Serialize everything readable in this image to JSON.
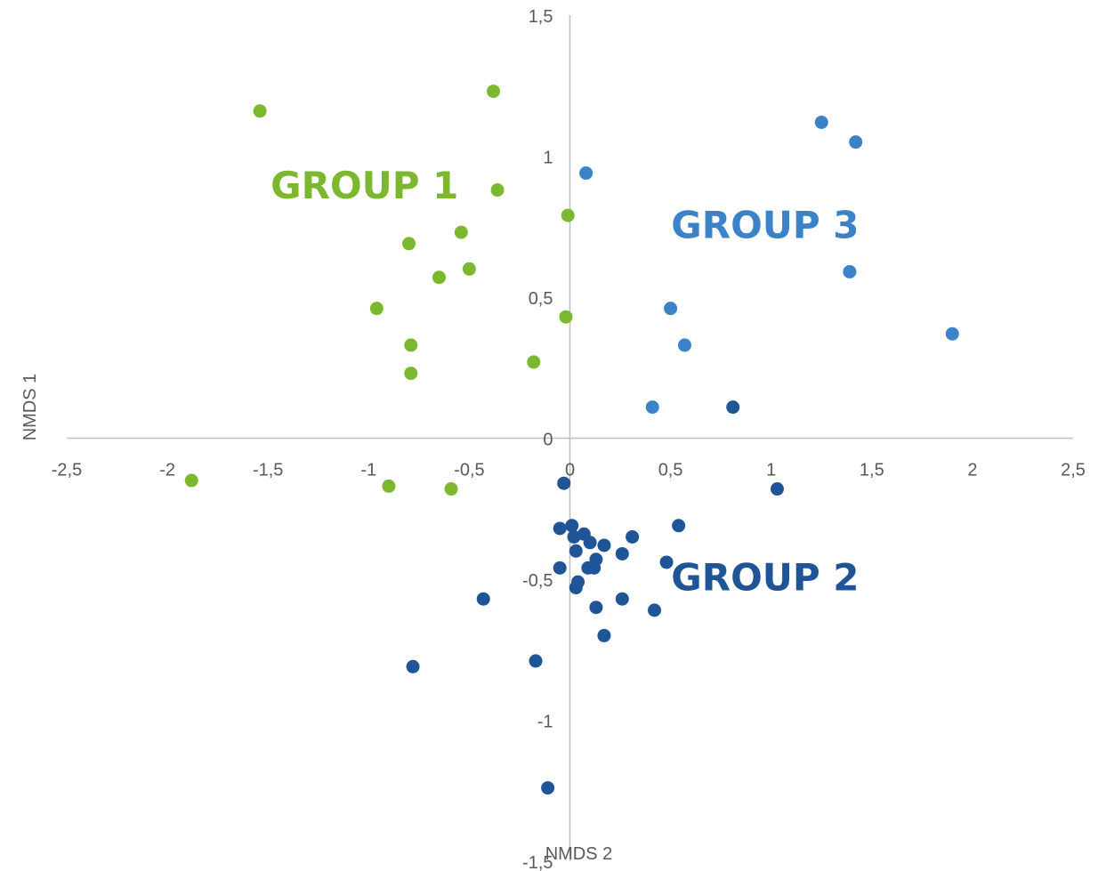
{
  "chart_data": {
    "type": "scatter",
    "title": "",
    "xlabel": "NMDS 2",
    "ylabel": "NMDS 1",
    "xlim": [
      -2.5,
      2.5
    ],
    "ylim": [
      -1.5,
      1.5
    ],
    "x_ticks": [
      "-2,5",
      "-2",
      "-1,5",
      "-1",
      "-0,5",
      "0",
      "0,5",
      "1",
      "1,5",
      "2",
      "2,5"
    ],
    "y_ticks": [
      "1,5",
      "1",
      "0,5",
      "0",
      "-0,5",
      "-1",
      "-1,5"
    ],
    "grid": false,
    "legend": "none",
    "annotations": [
      {
        "text": "GROUP 1",
        "color": "#7cb82f"
      },
      {
        "text": "GROUP 3",
        "color": "#3b82c8"
      },
      {
        "text": "GROUP 2",
        "color": "#1f5596"
      }
    ],
    "series": [
      {
        "color": "#7cb82f",
        "points": [
          [
            -1.54,
            1.16
          ],
          [
            -0.38,
            1.23
          ],
          [
            -0.36,
            0.88
          ],
          [
            -0.01,
            0.79
          ],
          [
            -0.54,
            0.73
          ],
          [
            -0.8,
            0.69
          ],
          [
            -0.65,
            0.57
          ],
          [
            -0.5,
            0.6
          ],
          [
            -0.96,
            0.46
          ],
          [
            -0.02,
            0.43
          ],
          [
            -0.79,
            0.33
          ],
          [
            -0.79,
            0.23
          ],
          [
            -0.18,
            0.27
          ],
          [
            -1.88,
            -0.15
          ],
          [
            -0.9,
            -0.17
          ],
          [
            -0.59,
            -0.18
          ]
        ]
      },
      {
        "color": "#3b82c8",
        "points": [
          [
            1.25,
            1.12
          ],
          [
            1.42,
            1.05
          ],
          [
            0.08,
            0.94
          ],
          [
            1.39,
            0.59
          ],
          [
            0.5,
            0.46
          ],
          [
            0.57,
            0.33
          ],
          [
            1.9,
            0.37
          ],
          [
            0.41,
            0.11
          ]
        ]
      },
      {
        "color": "#1f5596",
        "points": [
          [
            0.81,
            0.11
          ],
          [
            1.03,
            -0.18
          ],
          [
            -0.03,
            -0.16
          ],
          [
            0.01,
            -0.31
          ],
          [
            -0.05,
            -0.32
          ],
          [
            0.02,
            -0.35
          ],
          [
            0.07,
            -0.34
          ],
          [
            0.31,
            -0.35
          ],
          [
            0.54,
            -0.31
          ],
          [
            0.1,
            -0.37
          ],
          [
            0.17,
            -0.38
          ],
          [
            0.03,
            -0.4
          ],
          [
            0.13,
            -0.43
          ],
          [
            0.26,
            -0.41
          ],
          [
            0.48,
            -0.44
          ],
          [
            -0.05,
            -0.46
          ],
          [
            0.09,
            -0.46
          ],
          [
            0.12,
            -0.46
          ],
          [
            0.04,
            -0.51
          ],
          [
            0.03,
            -0.53
          ],
          [
            -0.43,
            -0.57
          ],
          [
            0.26,
            -0.57
          ],
          [
            0.13,
            -0.6
          ],
          [
            0.42,
            -0.61
          ],
          [
            0.17,
            -0.7
          ],
          [
            -0.17,
            -0.79
          ],
          [
            -0.78,
            -0.81
          ],
          [
            -0.11,
            -1.24
          ]
        ]
      }
    ]
  }
}
